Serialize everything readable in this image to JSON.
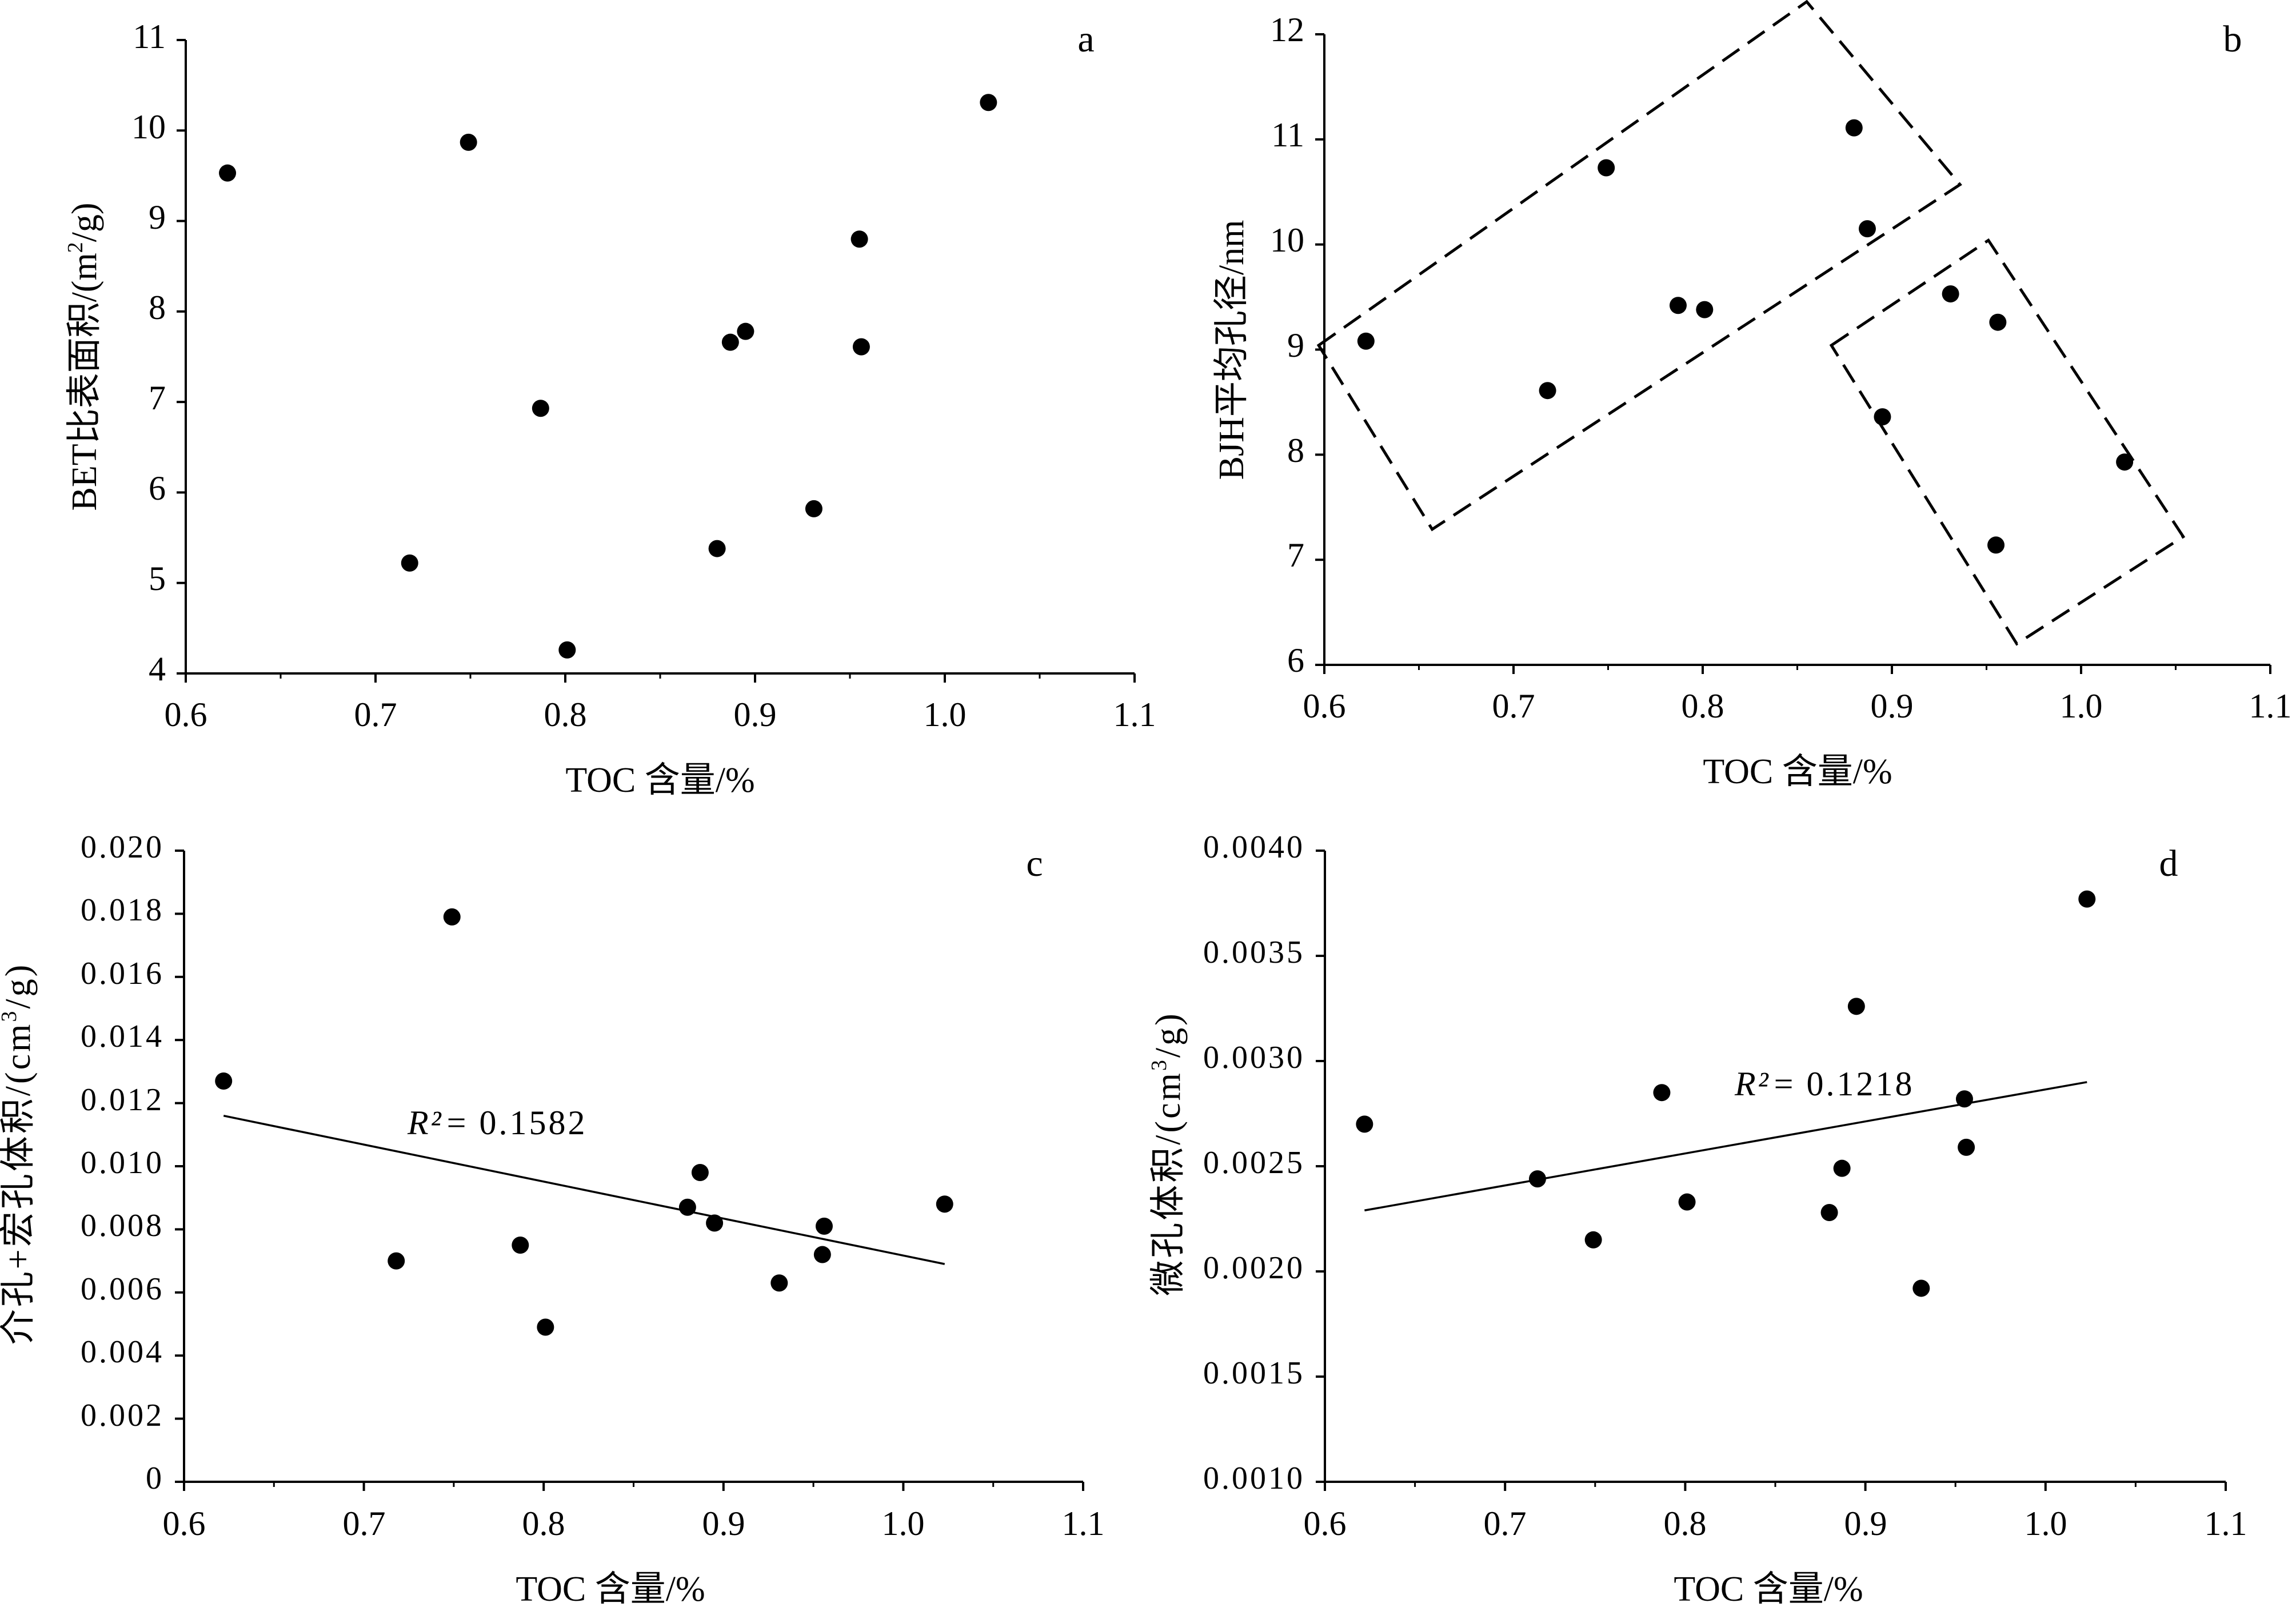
{
  "chart_data": [
    {
      "id": "a",
      "type": "scatter",
      "panel_label": "a",
      "xlabel": "TOC 含量/%",
      "ylabel_main": "BET比表面积/(m",
      "ylabel_sup": "2",
      "ylabel_end": "/g)",
      "xlim": [
        0.6,
        1.1
      ],
      "ylim": [
        4,
        11
      ],
      "xticks": [
        "0.6",
        "0.7",
        "0.8",
        "0.9",
        "1.0",
        "1.1"
      ],
      "yticks": [
        "4",
        "5",
        "6",
        "7",
        "8",
        "9",
        "10",
        "11"
      ],
      "points": [
        {
          "x": 0.622,
          "y": 9.53
        },
        {
          "x": 0.718,
          "y": 5.22
        },
        {
          "x": 0.749,
          "y": 9.87
        },
        {
          "x": 0.787,
          "y": 6.93
        },
        {
          "x": 0.801,
          "y": 4.26
        },
        {
          "x": 0.88,
          "y": 5.38
        },
        {
          "x": 0.887,
          "y": 7.66
        },
        {
          "x": 0.895,
          "y": 7.78
        },
        {
          "x": 0.931,
          "y": 5.82
        },
        {
          "x": 0.955,
          "y": 8.8
        },
        {
          "x": 0.956,
          "y": 7.61
        },
        {
          "x": 1.023,
          "y": 10.31
        }
      ]
    },
    {
      "id": "b",
      "type": "scatter",
      "panel_label": "b",
      "xlabel": "TOC 含量/%",
      "ylabel": "BJH平均孔径/nm",
      "xlim": [
        0.6,
        1.1
      ],
      "ylim": [
        6,
        12
      ],
      "xticks": [
        "0.6",
        "0.7",
        "0.8",
        "0.9",
        "1.0",
        "1.1"
      ],
      "yticks": [
        "6",
        "7",
        "8",
        "9",
        "10",
        "11",
        "12"
      ],
      "points": [
        {
          "x": 0.622,
          "y": 9.08
        },
        {
          "x": 0.718,
          "y": 8.61
        },
        {
          "x": 0.749,
          "y": 10.73
        },
        {
          "x": 0.787,
          "y": 9.42
        },
        {
          "x": 0.801,
          "y": 9.38
        },
        {
          "x": 0.88,
          "y": 11.11
        },
        {
          "x": 0.887,
          "y": 10.15
        },
        {
          "x": 0.895,
          "y": 8.36
        },
        {
          "x": 0.931,
          "y": 9.53
        },
        {
          "x": 0.955,
          "y": 7.14
        },
        {
          "x": 0.956,
          "y": 9.26
        },
        {
          "x": 1.023,
          "y": 7.93
        }
      ],
      "groups": [
        {
          "corners": [
            [
              0.597,
              9.04
            ],
            [
              0.855,
              12.31
            ],
            [
              0.936,
              10.57
            ],
            [
              0.657,
              7.29
            ]
          ]
        },
        {
          "corners": [
            [
              0.868,
              9.04
            ],
            [
              0.951,
              10.04
            ],
            [
              1.054,
              7.22
            ],
            [
              0.966,
              6.2
            ]
          ]
        }
      ]
    },
    {
      "id": "c",
      "type": "scatter",
      "panel_label": "c",
      "xlabel": "TOC 含量/%",
      "ylabel_main": "介孔+宏孔体积/(cm",
      "ylabel_sup": "3",
      "ylabel_end": "/g)",
      "xlim": [
        0.6,
        1.1
      ],
      "ylim": [
        0,
        0.02
      ],
      "xticks": [
        "0.6",
        "0.7",
        "0.8",
        "0.9",
        "1.0",
        "1.1"
      ],
      "yticks": [
        "0",
        "0.002",
        "0.004",
        "0.006",
        "0.008",
        "0.010",
        "0.012",
        "0.014",
        "0.016",
        "0.018",
        "0.020"
      ],
      "points": [
        {
          "x": 0.622,
          "y": 0.0127
        },
        {
          "x": 0.718,
          "y": 0.007
        },
        {
          "x": 0.749,
          "y": 0.0179
        },
        {
          "x": 0.787,
          "y": 0.0075
        },
        {
          "x": 0.801,
          "y": 0.0049
        },
        {
          "x": 0.88,
          "y": 0.0087
        },
        {
          "x": 0.887,
          "y": 0.0098
        },
        {
          "x": 0.895,
          "y": 0.0082
        },
        {
          "x": 0.931,
          "y": 0.0063
        },
        {
          "x": 0.955,
          "y": 0.0072
        },
        {
          "x": 0.956,
          "y": 0.0081
        },
        {
          "x": 1.023,
          "y": 0.0088
        }
      ],
      "trendline": {
        "x": [
          0.622,
          1.023
        ],
        "y": [
          0.0116,
          0.0069
        ]
      },
      "r2_label": "R²",
      "r2_value": "= 0.1582"
    },
    {
      "id": "d",
      "type": "scatter",
      "panel_label": "d",
      "xlabel": "TOC 含量/%",
      "ylabel_main": "微孔体积/(cm",
      "ylabel_sup": "3",
      "ylabel_end": "/g)",
      "xlim": [
        0.6,
        1.1
      ],
      "ylim": [
        0.001,
        0.004
      ],
      "xticks": [
        "0.6",
        "0.7",
        "0.8",
        "0.9",
        "1.0",
        "1.1"
      ],
      "yticks": [
        "0.0010",
        "0.0015",
        "0.0020",
        "0.0025",
        "0.0030",
        "0.0035",
        "0.0040"
      ],
      "points": [
        {
          "x": 0.622,
          "y": 0.0027
        },
        {
          "x": 0.718,
          "y": 0.00244
        },
        {
          "x": 0.749,
          "y": 0.00215
        },
        {
          "x": 0.787,
          "y": 0.00285
        },
        {
          "x": 0.801,
          "y": 0.00233
        },
        {
          "x": 0.88,
          "y": 0.00228
        },
        {
          "x": 0.887,
          "y": 0.00249
        },
        {
          "x": 0.895,
          "y": 0.00326
        },
        {
          "x": 0.931,
          "y": 0.00192
        },
        {
          "x": 0.955,
          "y": 0.00282
        },
        {
          "x": 0.956,
          "y": 0.00259
        },
        {
          "x": 1.023,
          "y": 0.00377
        }
      ],
      "trendline": {
        "x": [
          0.622,
          1.023
        ],
        "y": [
          0.00229,
          0.0029
        ]
      },
      "r2_label": "R²",
      "r2_value": "= 0.1218"
    }
  ]
}
